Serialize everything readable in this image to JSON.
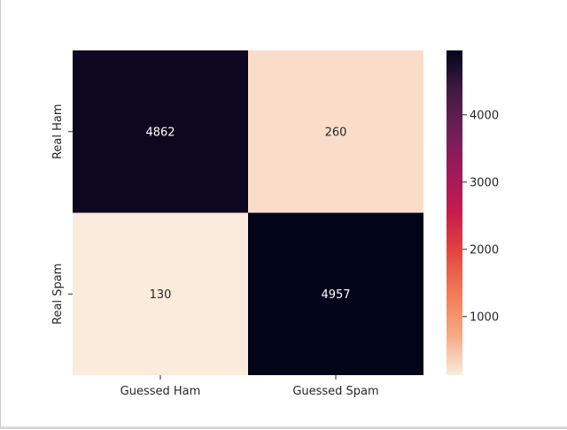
{
  "chart_data": {
    "type": "heatmap",
    "row_labels": [
      "Real Ham",
      "Real Spam"
    ],
    "col_labels": [
      "Guessed Ham",
      "Guessed Spam"
    ],
    "values": [
      [
        4862,
        260
      ],
      [
        130,
        4957
      ]
    ],
    "colorbar": {
      "min": 130,
      "max": 4957,
      "ticks": [
        1000,
        2000,
        3000,
        4000
      ],
      "colormap": "rocket_r"
    },
    "title": "",
    "xlabel": "",
    "ylabel": ""
  }
}
